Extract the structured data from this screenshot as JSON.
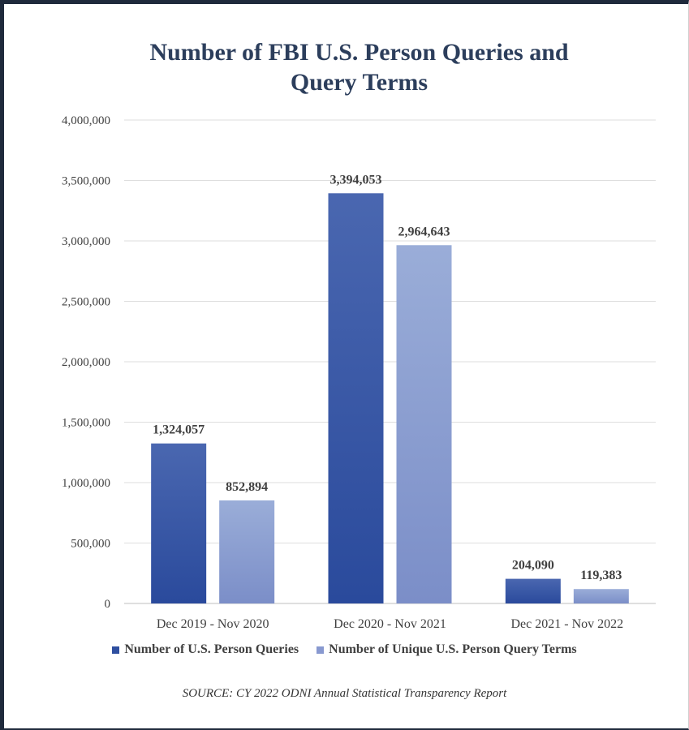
{
  "chart_data": {
    "type": "bar",
    "title_lines": [
      "Number of FBI U.S. Person Queries and",
      "Query Terms"
    ],
    "categories": [
      "Dec 2019 - Nov 2020",
      "Dec 2020 - Nov 2021",
      "Dec 2021 - Nov 2022"
    ],
    "series": [
      {
        "name": "Number of U.S. Person Queries",
        "values": [
          1324057,
          3394053,
          204090
        ],
        "labels": [
          "1,324,057",
          "3,394,053",
          "204,090"
        ],
        "color_top": "#4a67b0",
        "color_bottom": "#2a4a9c",
        "legend_color": "#2f4fa0"
      },
      {
        "name": "Number of Unique U.S. Person Query Terms",
        "values": [
          852894,
          2964643,
          119383
        ],
        "labels": [
          "852,894",
          "2,964,643",
          "119,383"
        ],
        "color_top": "#9aadd8",
        "color_bottom": "#7b8ec8",
        "legend_color": "#8899d0"
      }
    ],
    "yticks": [
      "0",
      "500,000",
      "1,000,000",
      "1,500,000",
      "2,000,000",
      "2,500,000",
      "3,000,000",
      "3,500,000",
      "4,000,000"
    ],
    "ylim": [
      0,
      4000000
    ],
    "grid": true,
    "legend_position": "bottom",
    "source": "SOURCE: CY 2022 ODNI Annual Statistical Transparency Report"
  }
}
